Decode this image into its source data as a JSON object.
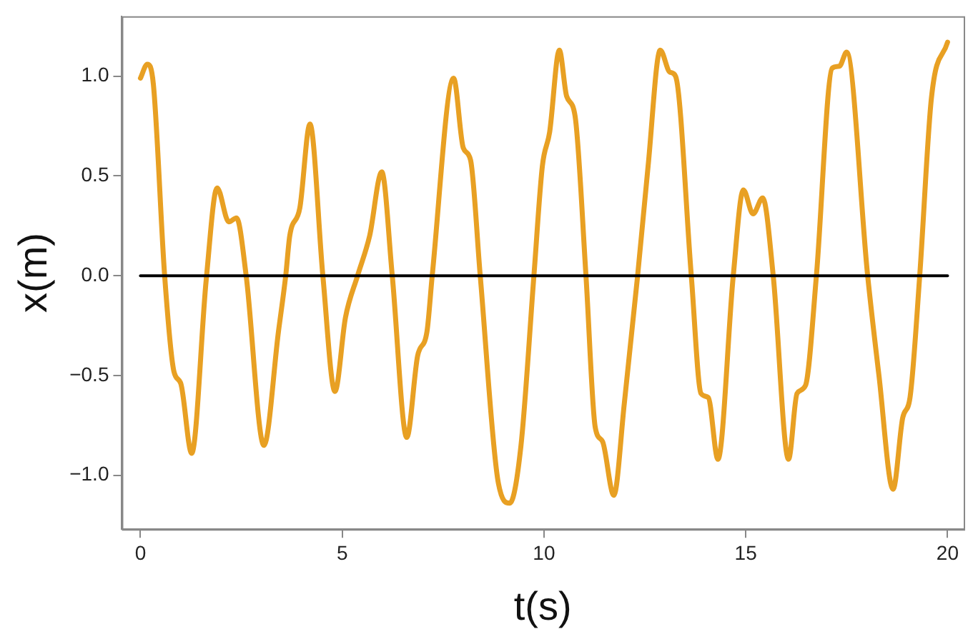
{
  "chart_data": {
    "type": "line",
    "xlabel": "t(s)",
    "ylabel": "x(m)",
    "xlim": [
      -0.46,
      20.4
    ],
    "xticks": [
      0,
      5,
      10,
      15,
      20
    ],
    "ylim": [
      -1.27,
      1.3
    ],
    "yticks": [
      {
        "value": -1,
        "label": "−1.0"
      },
      {
        "value": -0.5,
        "label": "−0.5"
      },
      {
        "value": 0,
        "label": "0.0"
      },
      {
        "value": 0.5,
        "label": "0.5"
      },
      {
        "value": 1,
        "label": "1.0"
      }
    ],
    "grid": false,
    "legend": false,
    "marker": "none",
    "line_style": "solid",
    "series": [
      {
        "color": "#e8a023",
        "x": [
          0,
          0.17,
          0.32,
          0.6,
          0.83,
          1.0,
          1.27,
          1.63,
          1.9,
          2.19,
          2.38,
          2.62,
          3.06,
          3.42,
          3.6,
          3.7,
          3.95,
          4.2,
          4.52,
          4.82,
          5.08,
          5.38,
          5.68,
          5.98,
          6.24,
          6.6,
          6.87,
          7.1,
          7.23,
          7.76,
          8.0,
          8.18,
          8.42,
          8.87,
          9.15,
          9.43,
          9.75,
          9.96,
          10.14,
          10.38,
          10.56,
          10.77,
          11.04,
          11.27,
          11.45,
          11.73,
          11.99,
          12.32,
          12.58,
          12.88,
          13.12,
          13.26,
          13.65,
          13.89,
          14.07,
          14.31,
          14.69,
          14.94,
          15.18,
          15.42,
          15.68,
          16.06,
          16.27,
          16.48,
          16.75,
          17.14,
          17.32,
          17.5,
          18.02,
          18.3,
          18.65,
          18.89,
          19.07,
          19.31,
          19.6,
          20.0
        ],
        "values": [
          0.99,
          1.06,
          0.96,
          0,
          -0.48,
          -0.54,
          -0.89,
          -0.02,
          0.44,
          0.27,
          0.29,
          0,
          -0.85,
          -0.28,
          0,
          0.2,
          0.34,
          0.76,
          0,
          -0.58,
          -0.21,
          0,
          0.2,
          0.52,
          0,
          -0.81,
          -0.4,
          -0.28,
          0,
          0.99,
          0.64,
          0.58,
          0,
          -1.04,
          -1.14,
          -0.85,
          0,
          0.55,
          0.72,
          1.13,
          0.9,
          0.8,
          0,
          -0.76,
          -0.83,
          -1.1,
          -0.64,
          0,
          0.55,
          1.13,
          1.02,
          1.0,
          0,
          -0.59,
          -0.61,
          -0.92,
          0,
          0.43,
          0.31,
          0.39,
          0,
          -0.92,
          -0.59,
          -0.55,
          0,
          1.04,
          1.05,
          1.12,
          0,
          -0.5,
          -1.07,
          -0.71,
          -0.61,
          0,
          0.89,
          1.17
        ]
      },
      {
        "color": "#000000",
        "x": [
          0,
          20
        ],
        "values": [
          0,
          0
        ]
      }
    ]
  }
}
